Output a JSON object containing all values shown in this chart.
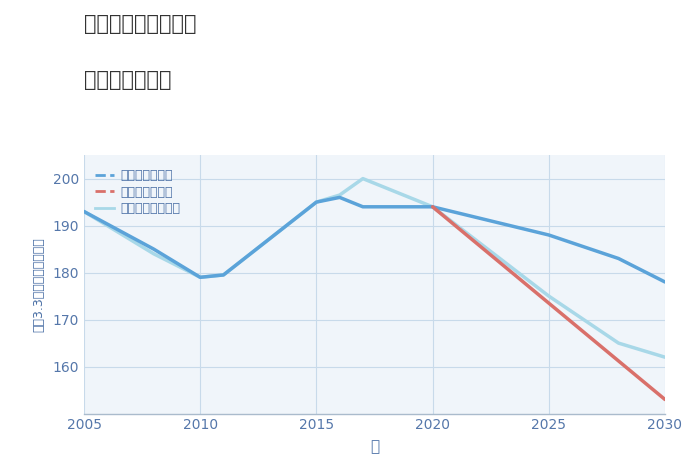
{
  "title_line1": "東京都大泉学園駅の",
  "title_line2": "土地の価格推移",
  "xlabel": "年",
  "ylabel": "坪（3.3㎡）単価（万円）",
  "xlim": [
    2005,
    2030
  ],
  "ylim": [
    150,
    205
  ],
  "yticks": [
    160,
    170,
    180,
    190,
    200
  ],
  "xticks": [
    2005,
    2010,
    2015,
    2020,
    2025,
    2030
  ],
  "good_scenario": {
    "x": [
      2005,
      2008,
      2010,
      2011,
      2015,
      2016,
      2017,
      2020,
      2025,
      2028,
      2030
    ],
    "y": [
      193,
      185,
      179,
      179.5,
      195,
      196,
      194,
      194,
      188,
      183,
      178
    ],
    "color": "#5ba3d9",
    "label": "グッドシナリオ",
    "linewidth": 2.5,
    "linestyle": "-"
  },
  "bad_scenario": {
    "x": [
      2020,
      2030
    ],
    "y": [
      194,
      153
    ],
    "color": "#d9706a",
    "label": "バッドシナリオ",
    "linewidth": 2.5,
    "linestyle": "-"
  },
  "normal_scenario": {
    "x": [
      2005,
      2008,
      2010,
      2011,
      2015,
      2016,
      2017,
      2020,
      2025,
      2028,
      2030
    ],
    "y": [
      193,
      184,
      179,
      179.5,
      195,
      196.5,
      200,
      194,
      175,
      165,
      162
    ],
    "color": "#a8d8e8",
    "label": "ノーマルシナリオ",
    "linewidth": 2.5,
    "linestyle": "-"
  },
  "background_color": "#f0f5fa",
  "grid_color": "#c8daea",
  "text_color": "#4a6fa5",
  "tick_color": "#5577aa"
}
